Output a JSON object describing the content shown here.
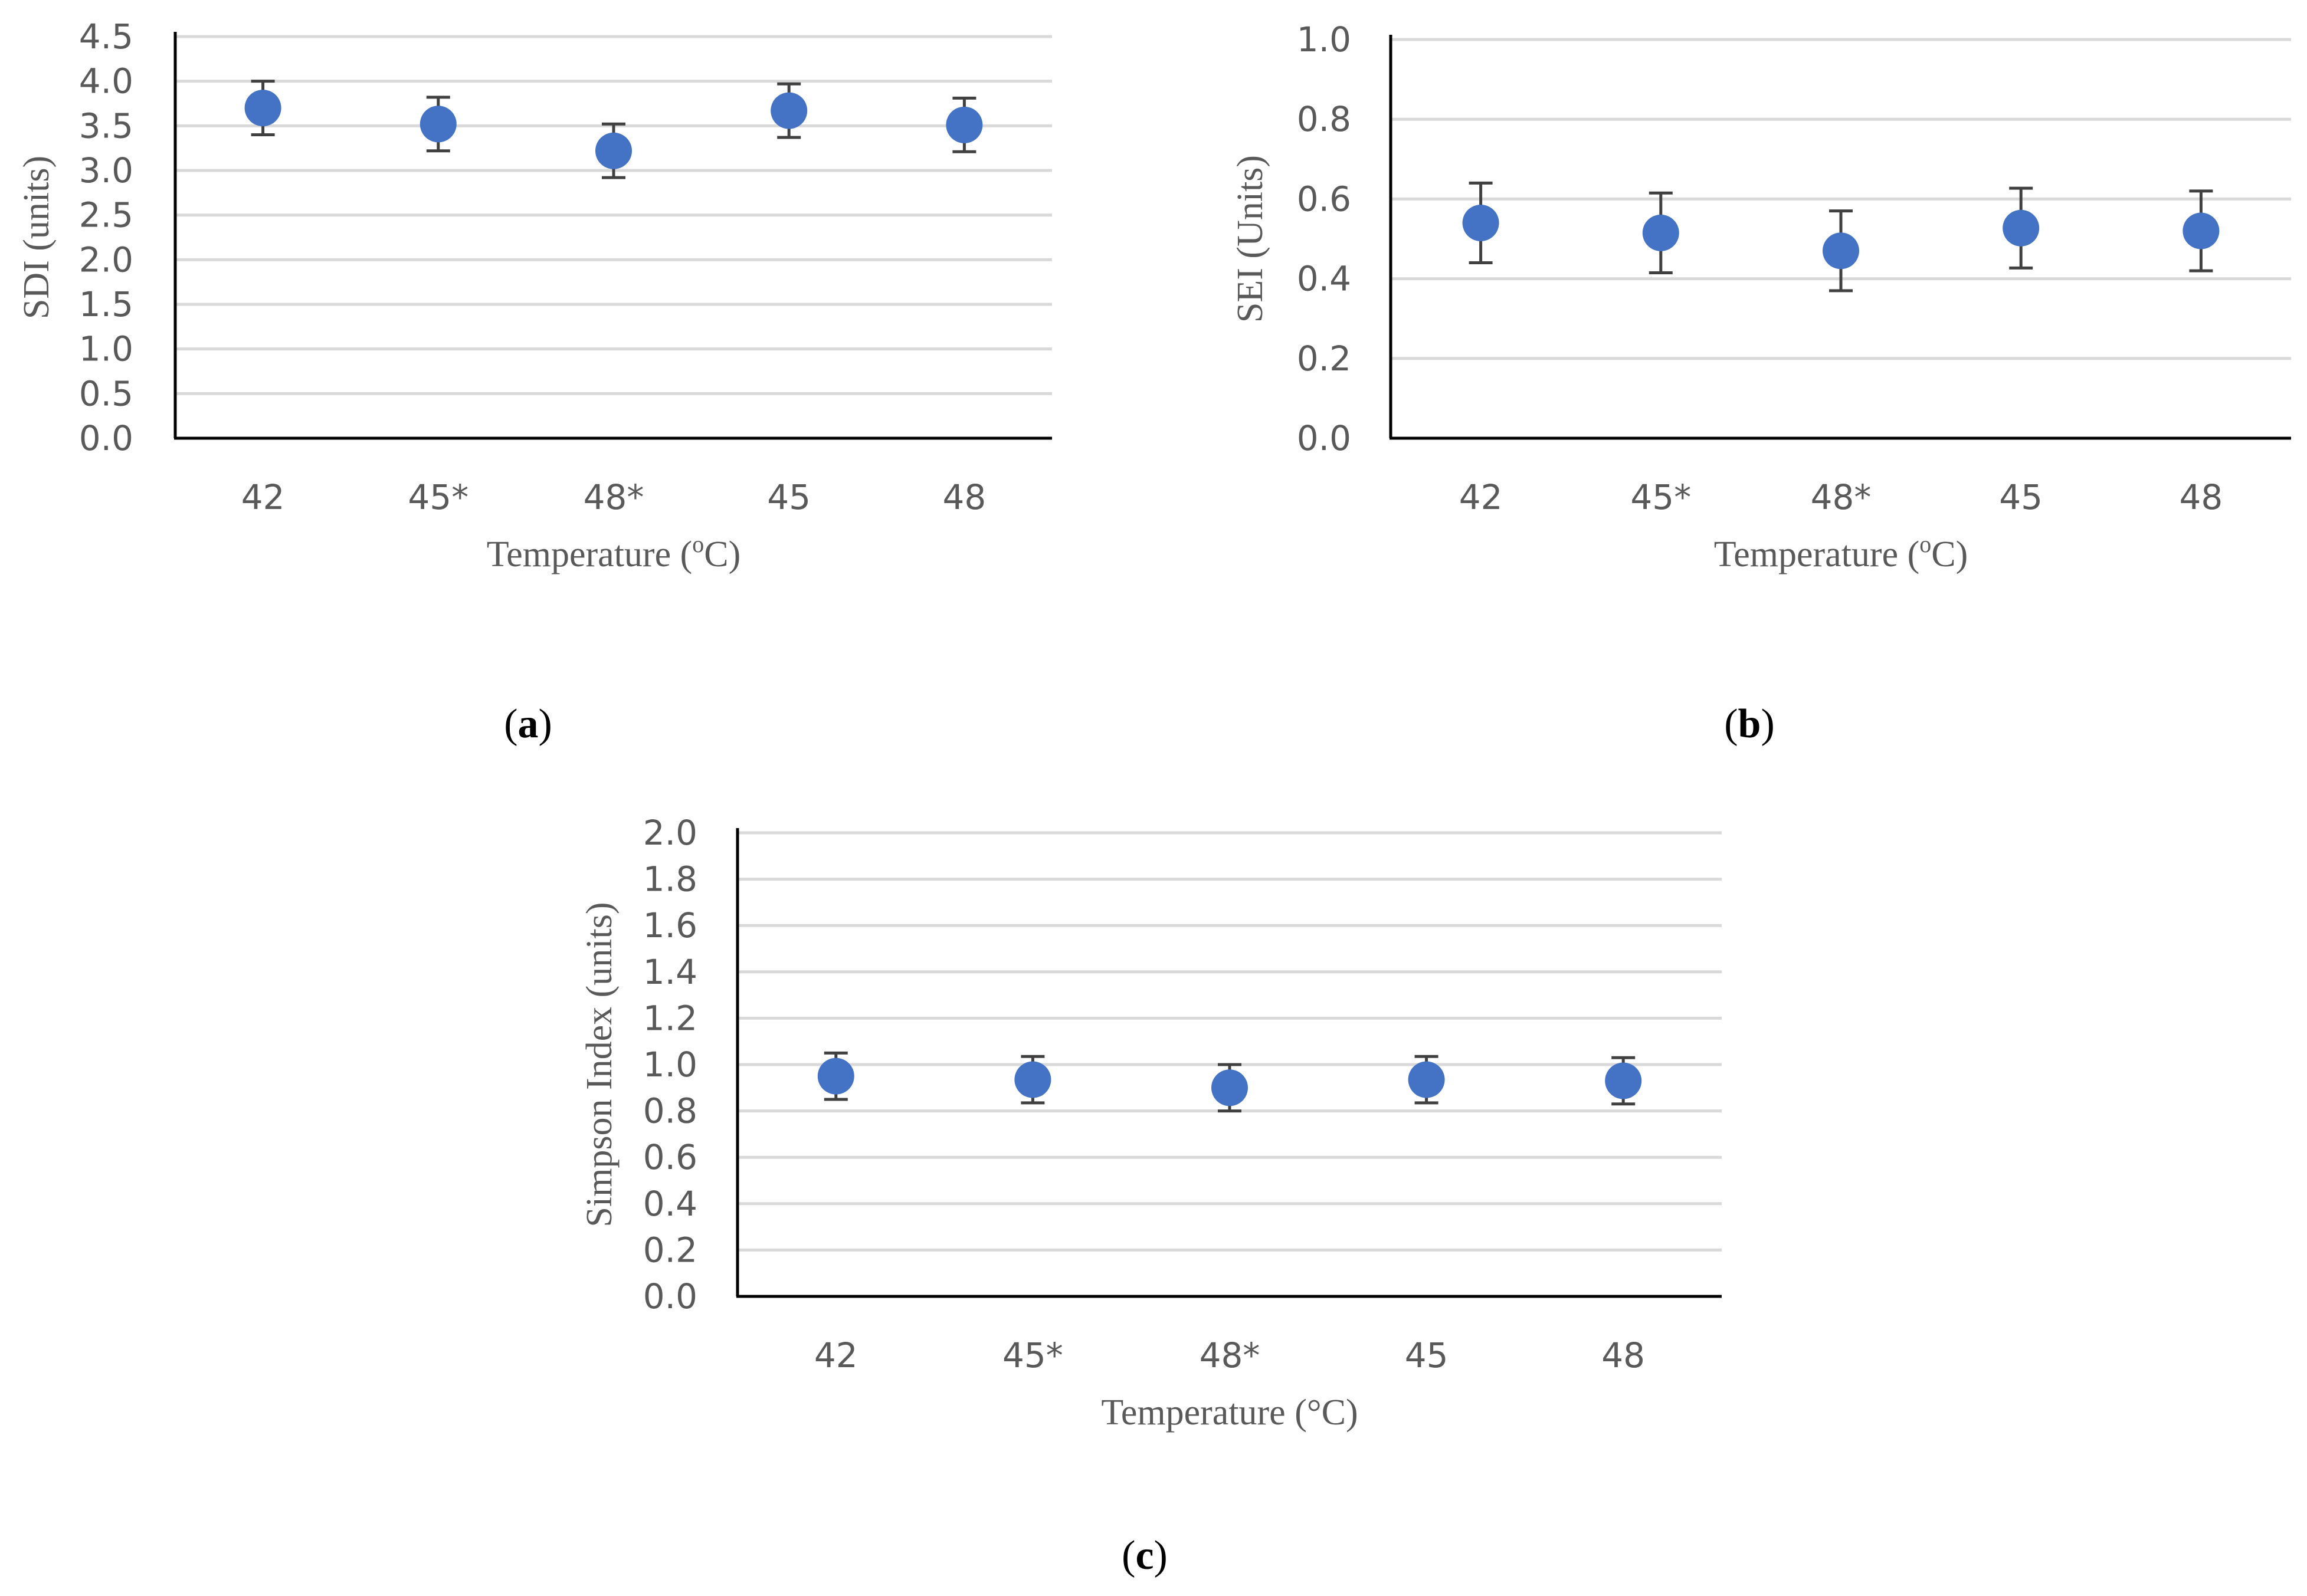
{
  "colors": {
    "marker": "#4472C4",
    "grid": "#D9D9D9",
    "axis": "#000000",
    "error_bar": "#404040",
    "text": "#595959"
  },
  "chart_data": [
    {
      "id": "a",
      "type": "scatter",
      "panel_label": "a",
      "title": "",
      "xlabel": "Temperature (",
      "xlabel_sup": "o",
      "xlabel_suffix": "C)",
      "ylabel": "SDI (units)",
      "categories": [
        "42",
        "45*",
        "48*",
        "45",
        "48"
      ],
      "values": [
        3.7,
        3.52,
        3.22,
        3.67,
        3.51
      ],
      "error": [
        0.3,
        0.3,
        0.3,
        0.3,
        0.3
      ],
      "ylim": [
        0,
        4.5
      ],
      "yticks": [
        "0.0",
        "0.5",
        "1.0",
        "1.5",
        "2.0",
        "2.5",
        "3.0",
        "3.5",
        "4.0",
        "4.5"
      ],
      "grid": true
    },
    {
      "id": "b",
      "type": "scatter",
      "panel_label": "b",
      "title": "",
      "xlabel": "Temperature (",
      "xlabel_sup": "o",
      "xlabel_suffix": "C)",
      "ylabel": "SEI (Units)",
      "categories": [
        "42",
        "45*",
        "48*",
        "45",
        "48"
      ],
      "values": [
        0.54,
        0.515,
        0.47,
        0.527,
        0.52
      ],
      "error": [
        0.1,
        0.1,
        0.1,
        0.1,
        0.1
      ],
      "ylim": [
        0,
        1.0
      ],
      "yticks": [
        "0.0",
        "0.2",
        "0.4",
        "0.6",
        "0.8",
        "1.0"
      ],
      "grid": true
    },
    {
      "id": "c",
      "type": "scatter",
      "panel_label": "c",
      "title": "",
      "xlabel": "Temperature (°C)",
      "xlabel_sup": "",
      "xlabel_suffix": "",
      "ylabel": "Simpson Index (units)",
      "categories": [
        "42",
        "45*",
        "48*",
        "45",
        "48"
      ],
      "values": [
        0.95,
        0.935,
        0.9,
        0.935,
        0.93
      ],
      "error": [
        0.1,
        0.1,
        0.1,
        0.1,
        0.1
      ],
      "ylim": [
        0,
        2.0
      ],
      "yticks": [
        "0.0",
        "0.2",
        "0.4",
        "0.6",
        "0.8",
        "1.0",
        "1.2",
        "1.4",
        "1.6",
        "1.8",
        "2.0"
      ],
      "grid": true
    }
  ]
}
